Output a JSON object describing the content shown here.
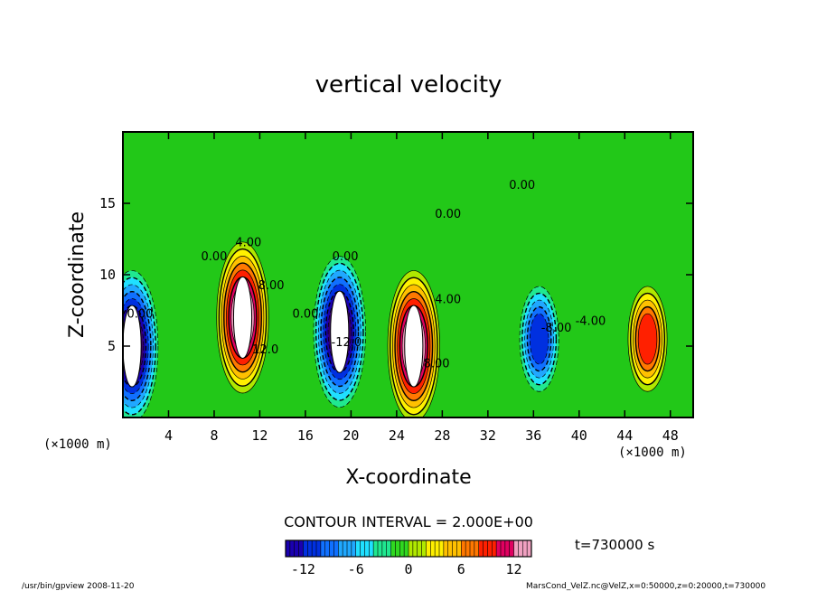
{
  "chart_data": {
    "type": "heatmap",
    "title": "vertical velocity",
    "xlabel": "X-coordinate",
    "ylabel": "Z-coordinate",
    "x_unit_label": "(×1000 m)",
    "z_unit_label": "(×1000 m)",
    "xlim": [
      0,
      50
    ],
    "ylim": [
      0,
      20
    ],
    "x_ticks": [
      4,
      8,
      12,
      16,
      20,
      24,
      28,
      32,
      36,
      40,
      44,
      48
    ],
    "y_ticks": [
      5,
      10,
      15
    ],
    "contour_interval_text": "CONTOUR INTERVAL = 2.000E+00",
    "contour_interval": 2.0,
    "colorbar": {
      "range": [
        -14,
        14
      ],
      "ticks": [
        -12,
        -6,
        0,
        6,
        12
      ]
    },
    "time_label": "t=730000 s",
    "contour_labels": [
      {
        "text": "0.00",
        "x": 8,
        "y": 11
      },
      {
        "text": "4.00",
        "x": 11,
        "y": 12
      },
      {
        "text": "8.00",
        "x": 13,
        "y": 9
      },
      {
        "text": "12.0",
        "x": 12.5,
        "y": 4.5
      },
      {
        "text": "0.00",
        "x": 16,
        "y": 7
      },
      {
        "text": "0.00",
        "x": 19.5,
        "y": 11
      },
      {
        "text": "-12.0",
        "x": 19.6,
        "y": 5
      },
      {
        "text": "4.00",
        "x": 28.5,
        "y": 8
      },
      {
        "text": "8.00",
        "x": 27.5,
        "y": 3.5
      },
      {
        "text": "0.00",
        "x": 28.5,
        "y": 14
      },
      {
        "text": "0.00",
        "x": 35,
        "y": 16
      },
      {
        "text": "-8.00",
        "x": 38,
        "y": 6
      },
      {
        "text": "-4.00",
        "x": 41,
        "y": 6.5
      },
      {
        "text": "0.00",
        "x": 1.5,
        "y": 7
      }
    ],
    "extrema": [
      {
        "sign": "positive",
        "x": 10.5,
        "y": 7,
        "peak": 14
      },
      {
        "sign": "negative",
        "x": 19,
        "y": 6,
        "peak": -14
      },
      {
        "sign": "positive",
        "x": 25.5,
        "y": 5,
        "peak": 14
      },
      {
        "sign": "negative",
        "x": 36.5,
        "y": 5.5,
        "peak": -10
      },
      {
        "sign": "positive",
        "x": 46,
        "y": 5.5,
        "peak": 10
      },
      {
        "sign": "negative",
        "x": 0.8,
        "y": 5,
        "peak": -14
      }
    ]
  },
  "footer": {
    "left": "/usr/bin/gpview   2008-11-20",
    "right": "MarsCond_VelZ.nc@VelZ,x=0:50000,z=0:20000,t=730000"
  }
}
